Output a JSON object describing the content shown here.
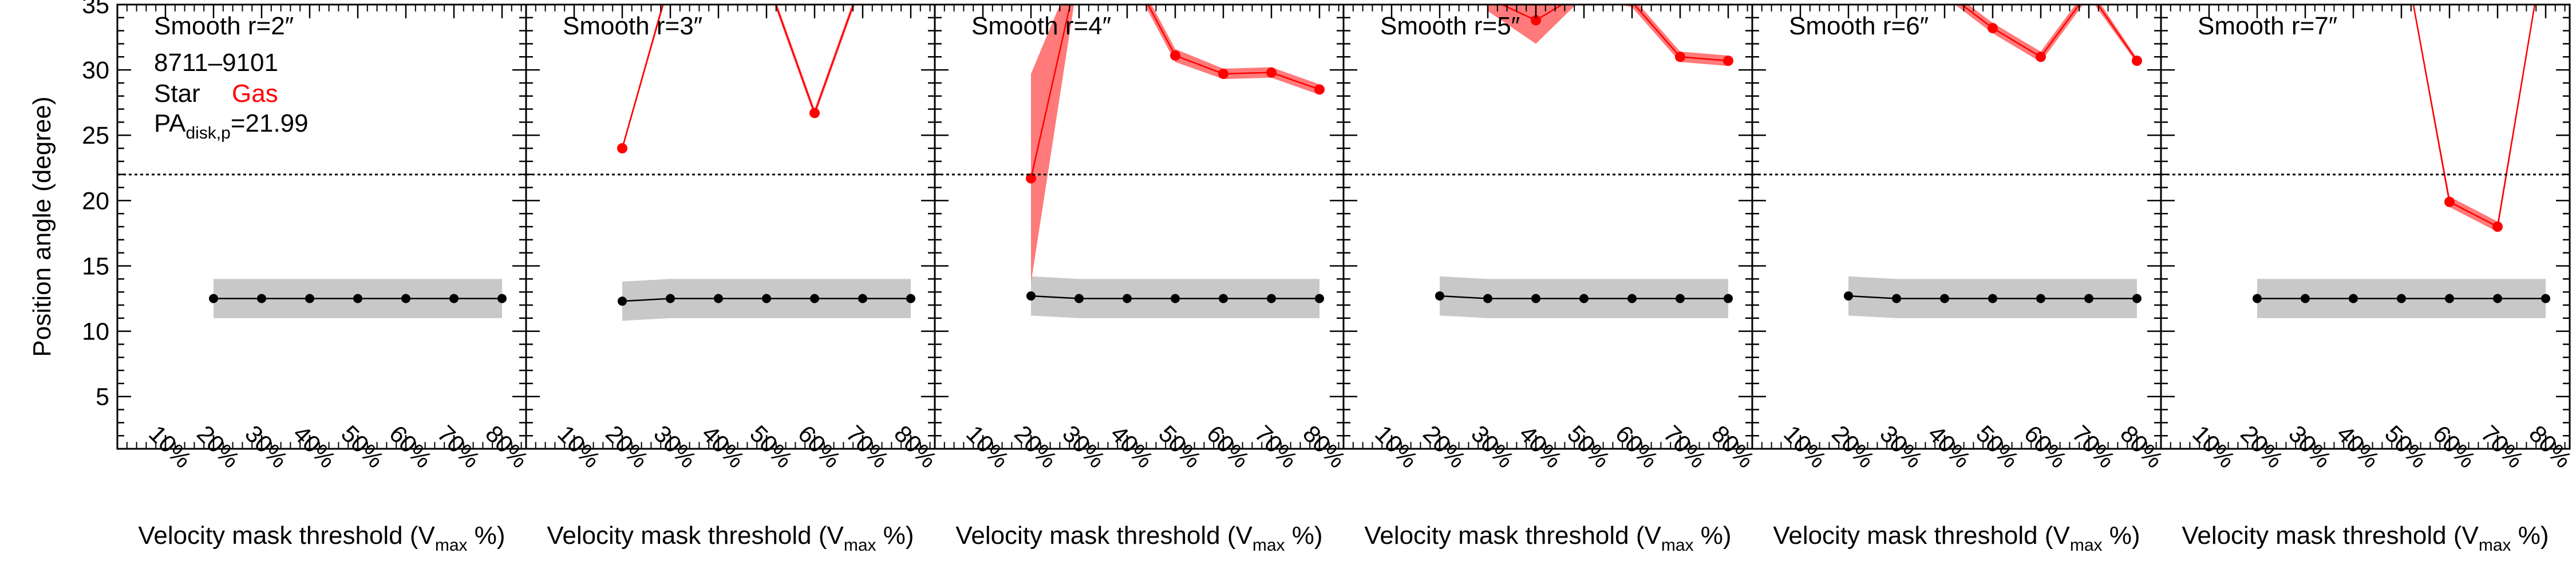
{
  "figure": {
    "ylabel": "Position angle (degree)",
    "xlabel_main": "Velocity mask threshold (V",
    "xlabel_sub": "max",
    "xlabel_tail": " %)",
    "x_tick_labels": [
      "10%",
      "20%",
      "30%",
      "40%",
      "50%",
      "60%",
      "70%",
      "80%"
    ],
    "y_tick_labels": [
      "5",
      "10",
      "15",
      "20",
      "25",
      "30",
      "35"
    ],
    "legend": {
      "galaxy_id": "8711–9101",
      "star_label": "Star",
      "gas_label": "Gas",
      "pa_prefix": "PA",
      "pa_sub": "disk,p",
      "pa_value": "=21.99"
    },
    "colors": {
      "star": "#000000",
      "star_band": "#c8c8c8",
      "gas": "#ff0000",
      "gas_band": "#ff7a7a",
      "reference_line": "#000000"
    }
  },
  "chart_data": [
    {
      "type": "line",
      "title": "Smooth r=2″",
      "x": [
        10,
        20,
        30,
        40,
        50,
        60,
        70,
        80
      ],
      "xlim": [
        0,
        85
      ],
      "ylim": [
        1,
        35
      ],
      "reference_line": 21.99,
      "series": [
        {
          "name": "Star",
          "x": [
            20,
            30,
            40,
            50,
            60,
            70,
            80
          ],
          "values": [
            12.5,
            12.5,
            12.5,
            12.5,
            12.5,
            12.5,
            12.5
          ],
          "err": [
            1.5,
            1.5,
            1.5,
            1.5,
            1.5,
            1.5,
            1.5
          ]
        },
        {
          "name": "Gas",
          "x": [],
          "values": [],
          "err": []
        }
      ]
    },
    {
      "type": "line",
      "title": "Smooth r=3″",
      "x": [
        10,
        20,
        30,
        40,
        50,
        60,
        70,
        80
      ],
      "xlim": [
        0,
        85
      ],
      "ylim": [
        1,
        35
      ],
      "reference_line": 21.99,
      "series": [
        {
          "name": "Star",
          "x": [
            20,
            30,
            40,
            50,
            60,
            70,
            80
          ],
          "values": [
            12.3,
            12.5,
            12.5,
            12.5,
            12.5,
            12.5,
            12.5
          ],
          "err": [
            1.5,
            1.5,
            1.5,
            1.5,
            1.5,
            1.5,
            1.5
          ]
        },
        {
          "name": "Gas",
          "x": [
            20,
            30,
            50,
            60,
            70
          ],
          "values": [
            24.0,
            37.0,
            37.0,
            26.7,
            37.0
          ],
          "err": [
            0.2,
            0.3,
            0.3,
            0.3,
            0.3
          ]
        }
      ]
    },
    {
      "type": "line",
      "title": "Smooth r=4″",
      "x": [
        10,
        20,
        30,
        40,
        50,
        60,
        70,
        80
      ],
      "xlim": [
        0,
        85
      ],
      "ylim": [
        1,
        35
      ],
      "reference_line": 21.99,
      "series": [
        {
          "name": "Star",
          "x": [
            20,
            30,
            40,
            50,
            60,
            70,
            80
          ],
          "values": [
            12.7,
            12.5,
            12.5,
            12.5,
            12.5,
            12.5,
            12.5
          ],
          "err": [
            1.5,
            1.5,
            1.5,
            1.5,
            1.5,
            1.5,
            1.5
          ]
        },
        {
          "name": "Gas",
          "x": [
            20,
            30,
            40,
            50,
            60,
            70,
            80
          ],
          "values": [
            21.7,
            38.0,
            38.0,
            31.1,
            29.7,
            29.8,
            28.5
          ],
          "err": [
            8.0,
            0.5,
            0.5,
            0.5,
            0.4,
            0.4,
            0.4
          ]
        }
      ]
    },
    {
      "type": "line",
      "title": "Smooth r=5″",
      "x": [
        10,
        20,
        30,
        40,
        50,
        60,
        70,
        80
      ],
      "xlim": [
        0,
        85
      ],
      "ylim": [
        1,
        35
      ],
      "reference_line": 21.99,
      "series": [
        {
          "name": "Star",
          "x": [
            20,
            30,
            40,
            50,
            60,
            70,
            80
          ],
          "values": [
            12.7,
            12.5,
            12.5,
            12.5,
            12.5,
            12.5,
            12.5
          ],
          "err": [
            1.5,
            1.5,
            1.5,
            1.5,
            1.5,
            1.5,
            1.5
          ]
        },
        {
          "name": "Gas",
          "x": [
            30,
            40,
            50,
            60,
            70,
            80
          ],
          "values": [
            35.5,
            33.8,
            36.0,
            35.2,
            31.0,
            30.7
          ],
          "err": [
            1.0,
            1.8,
            0.4,
            0.4,
            0.4,
            0.4
          ]
        }
      ]
    },
    {
      "type": "line",
      "title": "Smooth r=6″",
      "x": [
        10,
        20,
        30,
        40,
        50,
        60,
        70,
        80
      ],
      "xlim": [
        0,
        85
      ],
      "ylim": [
        1,
        35
      ],
      "reference_line": 21.99,
      "series": [
        {
          "name": "Star",
          "x": [
            20,
            30,
            40,
            50,
            60,
            70,
            80
          ],
          "values": [
            12.7,
            12.5,
            12.5,
            12.5,
            12.5,
            12.5,
            12.5
          ],
          "err": [
            1.5,
            1.5,
            1.5,
            1.5,
            1.5,
            1.5,
            1.5
          ]
        },
        {
          "name": "Gas",
          "x": [
            40,
            50,
            60,
            70,
            80
          ],
          "values": [
            36.0,
            33.2,
            31.0,
            36.0,
            30.7
          ],
          "err": [
            0.4,
            0.4,
            0.4,
            0.4,
            0.2
          ]
        }
      ]
    },
    {
      "type": "line",
      "title": "Smooth r=7″",
      "x": [
        10,
        20,
        30,
        40,
        50,
        60,
        70,
        80
      ],
      "xlim": [
        0,
        85
      ],
      "ylim": [
        1,
        35
      ],
      "reference_line": 21.99,
      "series": [
        {
          "name": "Star",
          "x": [
            20,
            30,
            40,
            50,
            60,
            70,
            80
          ],
          "values": [
            12.5,
            12.5,
            12.5,
            12.5,
            12.5,
            12.5,
            12.5
          ],
          "err": [
            1.5,
            1.5,
            1.5,
            1.5,
            1.5,
            1.5,
            1.5
          ]
        },
        {
          "name": "Gas",
          "x": [
            50,
            60,
            70,
            80
          ],
          "values": [
            40.0,
            19.9,
            18.0,
            40.0
          ],
          "err": [
            0.2,
            0.4,
            0.4,
            0.2
          ]
        }
      ]
    }
  ]
}
